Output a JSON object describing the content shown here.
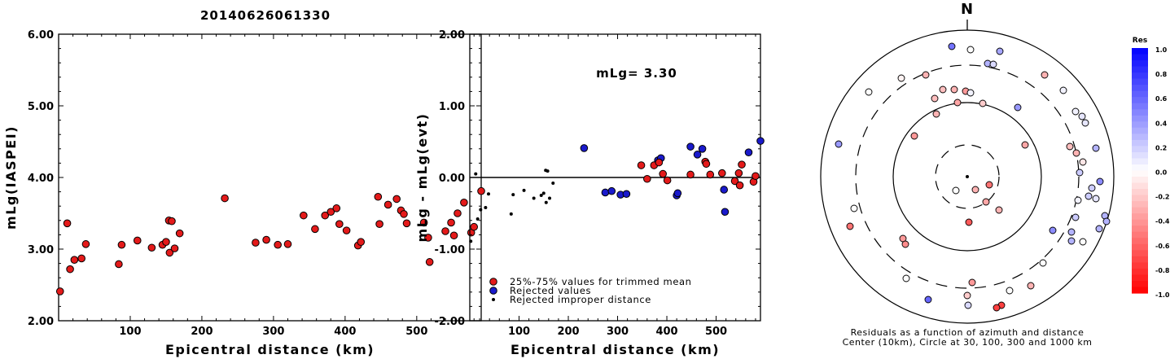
{
  "title": "20140626061330",
  "colors": {
    "trimmed": "#e41a1a",
    "rejected": "#1a1acc",
    "improper": "#000000"
  },
  "chart_data": [
    {
      "type": "scatter",
      "name": "left",
      "xlabel": "Epicentral distance (km)",
      "ylabel": "mLg(IASPEI)",
      "xlim": [
        0,
        590
      ],
      "ylim": [
        2.0,
        6.0
      ],
      "xticks": [
        "100",
        "200",
        "300",
        "400",
        "500"
      ],
      "yticks": [
        "2.00",
        "3.00",
        "4.00",
        "5.00",
        "6.00"
      ],
      "points": [
        [
          2,
          2.41
        ],
        [
          12,
          3.36
        ],
        [
          16,
          2.72
        ],
        [
          22,
          2.85
        ],
        [
          32,
          2.87
        ],
        [
          38,
          3.07
        ],
        [
          84,
          2.79
        ],
        [
          88,
          3.06
        ],
        [
          110,
          3.12
        ],
        [
          130,
          3.02
        ],
        [
          145,
          3.06
        ],
        [
          150,
          3.1
        ],
        [
          154,
          3.4
        ],
        [
          158,
          3.39
        ],
        [
          155,
          2.95
        ],
        [
          162,
          3.01
        ],
        [
          169,
          3.22
        ],
        [
          232,
          3.71
        ],
        [
          275,
          3.09
        ],
        [
          290,
          3.13
        ],
        [
          306,
          3.06
        ],
        [
          320,
          3.07
        ],
        [
          342,
          3.47
        ],
        [
          358,
          3.28
        ],
        [
          372,
          3.47
        ],
        [
          380,
          3.52
        ],
        [
          388,
          3.57
        ],
        [
          392,
          3.35
        ],
        [
          402,
          3.26
        ],
        [
          418,
          3.05
        ],
        [
          422,
          3.1
        ],
        [
          446,
          3.73
        ],
        [
          448,
          3.35
        ],
        [
          460,
          3.62
        ],
        [
          472,
          3.7
        ],
        [
          478,
          3.54
        ],
        [
          482,
          3.49
        ],
        [
          486,
          3.36
        ],
        [
          510,
          3.37
        ],
        [
          516,
          3.16
        ],
        [
          518,
          2.82
        ],
        [
          540,
          3.25
        ],
        [
          548,
          3.37
        ],
        [
          552,
          3.19
        ],
        [
          557,
          3.5
        ],
        [
          566,
          3.65
        ],
        [
          576,
          3.23
        ],
        [
          580,
          3.31
        ],
        [
          590,
          3.81
        ]
      ]
    },
    {
      "type": "scatter",
      "name": "right",
      "xlabel": "Epicentral distance (km)",
      "ylabel": "mLg - mLg(evt)",
      "annotation": "mLg= 3.30",
      "xlim": [
        0,
        590
      ],
      "ylim": [
        -2.0,
        2.0
      ],
      "xticks": [
        "100",
        "200",
        "300",
        "400",
        "500"
      ],
      "yticks": [
        "-2.00",
        "-1.00",
        "0.00",
        "1.00",
        "2.00"
      ],
      "legend": [
        "25%-75% values for trimmed mean",
        "Rejected values",
        "Rejected improper distance"
      ],
      "trimmed": [
        [
          348,
          0.17
        ],
        [
          360,
          -0.02
        ],
        [
          374,
          0.17
        ],
        [
          384,
          0.21
        ],
        [
          392,
          0.05
        ],
        [
          401,
          -0.04
        ],
        [
          448,
          0.04
        ],
        [
          478,
          0.22
        ],
        [
          480,
          0.19
        ],
        [
          488,
          0.04
        ],
        [
          512,
          0.06
        ],
        [
          538,
          -0.05
        ],
        [
          546,
          0.06
        ],
        [
          548,
          -0.11
        ],
        [
          552,
          0.18
        ],
        [
          576,
          -0.06
        ],
        [
          580,
          0.02
        ]
      ],
      "rejected": [
        [
          232,
          0.41
        ],
        [
          275,
          -0.21
        ],
        [
          288,
          -0.19
        ],
        [
          306,
          -0.24
        ],
        [
          318,
          -0.23
        ],
        [
          382,
          0.24
        ],
        [
          388,
          0.27
        ],
        [
          420,
          -0.25
        ],
        [
          422,
          -0.22
        ],
        [
          448,
          0.43
        ],
        [
          462,
          0.32
        ],
        [
          472,
          0.4
        ],
        [
          516,
          -0.17
        ],
        [
          518,
          -0.48
        ],
        [
          566,
          0.35
        ],
        [
          590,
          0.51
        ]
      ],
      "improper": [
        [
          2,
          -0.89
        ],
        [
          12,
          0.05
        ],
        [
          16,
          -0.58
        ],
        [
          22,
          -0.45
        ],
        [
          32,
          -0.42
        ],
        [
          38,
          -0.23
        ],
        [
          84,
          -0.51
        ],
        [
          88,
          -0.24
        ],
        [
          110,
          -0.18
        ],
        [
          130,
          -0.29
        ],
        [
          145,
          -0.25
        ],
        [
          150,
          -0.22
        ],
        [
          154,
          0.1
        ],
        [
          158,
          0.09
        ],
        [
          155,
          -0.35
        ],
        [
          162,
          -0.29
        ],
        [
          169,
          -0.08
        ]
      ]
    },
    {
      "type": "scatter",
      "name": "polar",
      "north_label": "N",
      "caption": [
        "Residuals as a function of azimuth and distance",
        "Center (10km), Circle at 30, 100, 300 and 1000 km"
      ],
      "colorbar_title": "Res",
      "colorbar_ticks": [
        "1.0",
        "0.8",
        "0.6",
        "0.4",
        "0.2",
        "0.0",
        "-0.2",
        "-0.4",
        "-0.6",
        "-0.8",
        "-1.0"
      ],
      "stations": [
        [
          1169,
          57,
          0.55
        ],
        [
          1192,
          61,
          0.0
        ],
        [
          1228,
          63,
          0.35
        ],
        [
          1213,
          78,
          0.3
        ],
        [
          1220,
          79,
          0.15
        ],
        [
          1137,
          92,
          -0.3
        ],
        [
          1107,
          96,
          -0.05
        ],
        [
          1283,
          92,
          -0.3
        ],
        [
          1067,
          113,
          0.0
        ],
        [
          1158,
          110,
          -0.25
        ],
        [
          1172,
          110,
          -0.3
        ],
        [
          1186,
          112,
          -0.4
        ],
        [
          1192,
          114,
          0.05
        ],
        [
          1148,
          121,
          -0.25
        ],
        [
          1176,
          126,
          -0.35
        ],
        [
          1207,
          127,
          -0.2
        ],
        [
          1250,
          132,
          0.4
        ],
        [
          1306,
          111,
          0.05
        ],
        [
          1321,
          137,
          0.05
        ],
        [
          1329,
          143,
          0.1
        ],
        [
          1333,
          151,
          0.1
        ],
        [
          1150,
          140,
          -0.3
        ],
        [
          1123,
          167,
          -0.4
        ],
        [
          1030,
          177,
          0.4
        ],
        [
          1259,
          178,
          -0.35
        ],
        [
          1314,
          180,
          -0.25
        ],
        [
          1322,
          188,
          -0.3
        ],
        [
          1346,
          182,
          0.3
        ],
        [
          1330,
          199,
          -0.1
        ],
        [
          1326,
          212,
          0.2
        ],
        [
          1351,
          223,
          0.45
        ],
        [
          1341,
          231,
          0.2
        ],
        [
          1337,
          241,
          0.2
        ],
        [
          1346,
          244,
          0.1
        ],
        [
          1324,
          246,
          0.05
        ],
        [
          1215,
          227,
          -0.55
        ],
        [
          1198,
          233,
          -0.3
        ],
        [
          1174,
          234,
          0.0
        ],
        [
          1227,
          258,
          -0.3
        ],
        [
          1211,
          248,
          -0.35
        ],
        [
          1049,
          256,
          0.0
        ],
        [
          1190,
          273,
          -0.65
        ],
        [
          1044,
          278,
          -0.55
        ],
        [
          1321,
          267,
          0.2
        ],
        [
          1357,
          265,
          0.3
        ],
        [
          1359,
          272,
          0.3
        ],
        [
          1350,
          281,
          0.3
        ],
        [
          1316,
          285,
          0.3
        ],
        [
          1109,
          293,
          -0.4
        ],
        [
          1112,
          300,
          -0.45
        ],
        [
          1293,
          283,
          0.45
        ],
        [
          1316,
          296,
          0.3
        ],
        [
          1330,
          297,
          0.0
        ],
        [
          1281,
          323,
          0.0
        ],
        [
          1113,
          342,
          0.0
        ],
        [
          1194,
          347,
          -0.4
        ],
        [
          1266,
          351,
          -0.3
        ],
        [
          1240,
          357,
          0.0
        ],
        [
          1188,
          363,
          -0.2
        ],
        [
          1140,
          368,
          0.6
        ],
        [
          1189,
          375,
          0.15
        ],
        [
          1230,
          375,
          -0.75
        ],
        [
          1224,
          378,
          -0.75
        ]
      ]
    }
  ]
}
